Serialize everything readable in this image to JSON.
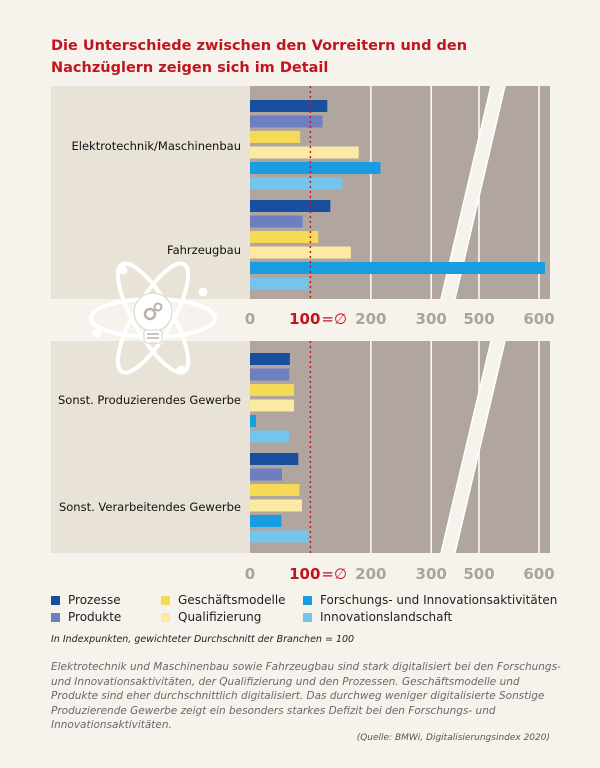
{
  "title_lines": [
    "Die Unterschiede zwischen den Vorreitern und den",
    "Nachzüglern zeigen sich im Detail"
  ],
  "legend": [
    {
      "label": "Prozesse",
      "color": "#1a4fa0"
    },
    {
      "label": "Geschäftsmodelle",
      "color": "#f5da55"
    },
    {
      "label": "Forschungs- und Innovationsaktivitäten",
      "color": "#1a9de0"
    },
    {
      "label": "Produkte",
      "color": "#6d7fbf"
    },
    {
      "label": "Qualifizierung",
      "color": "#fbe9a4"
    },
    {
      "label": "Innovationslandschaft",
      "color": "#74c4ec"
    }
  ],
  "note": "In Indexpunkten, gewichteter Durchschnitt der Branchen = 100",
  "description": "Elektrotechnik und Maschinenbau sowie Fahrzeugbau sind stark digitalisiert bei den Forschungs- und Innovationsaktivitäten, der Qualifizierung und den Prozessen. Geschäftsmodelle und Produkte sind eher durchschnittlich digitalisiert. Das durchweg weniger digitalisierte Sonstige Produzierende Gewerbe zeigt ein besonders starkes Defizit bei den Forschungs- und Innovationsaktivitäten.",
  "source": "(Quelle: BMWi, Digitalisierungsindex 2020)",
  "axis_ticks": [
    "0",
    "100",
    "200",
    "300",
    "500",
    "600"
  ],
  "avg_label": "=∅",
  "icon": "lightbulb-atom-icon",
  "colors": {
    "title": "#c0141e",
    "panel": "#e9e3d7",
    "plot": "#b0a69f",
    "ref_line": "#c0141e"
  },
  "chart_data": [
    {
      "type": "bar",
      "orientation": "horizontal",
      "categories": [
        "Elektrotechnik/Maschinenbau",
        "Fahrzeugbau"
      ],
      "series": [
        {
          "name": "Prozesse",
          "values": [
            128,
            133
          ]
        },
        {
          "name": "Produkte",
          "values": [
            120,
            87
          ]
        },
        {
          "name": "Geschäftsmodelle",
          "values": [
            83,
            113
          ]
        },
        {
          "name": "Qualifizierung",
          "values": [
            180,
            167
          ]
        },
        {
          "name": "Forschungs- und Innovationsaktivitäten",
          "values": [
            216,
            610
          ]
        },
        {
          "name": "Innovationslandschaft",
          "values": [
            153,
            97
          ]
        }
      ],
      "xlim": [
        0,
        640
      ],
      "axis_break": [
        330,
        450
      ],
      "reference_line": 100
    },
    {
      "type": "bar",
      "orientation": "horizontal",
      "categories": [
        "Sonst. Produzierendes Gewerbe",
        "Sonst. Verarbeitendes Gewerbe"
      ],
      "series": [
        {
          "name": "Prozesse",
          "values": [
            66,
            80
          ]
        },
        {
          "name": "Produkte",
          "values": [
            65,
            53
          ]
        },
        {
          "name": "Geschäftsmodelle",
          "values": [
            73,
            82
          ]
        },
        {
          "name": "Qualifizierung",
          "values": [
            73,
            86
          ]
        },
        {
          "name": "Forschungs- und Innovationsaktivitäten",
          "values": [
            10,
            52
          ]
        },
        {
          "name": "Innovationslandschaft",
          "values": [
            65,
            97
          ]
        }
      ],
      "xlim": [
        0,
        640
      ],
      "axis_break": [
        330,
        450
      ],
      "reference_line": 100
    }
  ]
}
